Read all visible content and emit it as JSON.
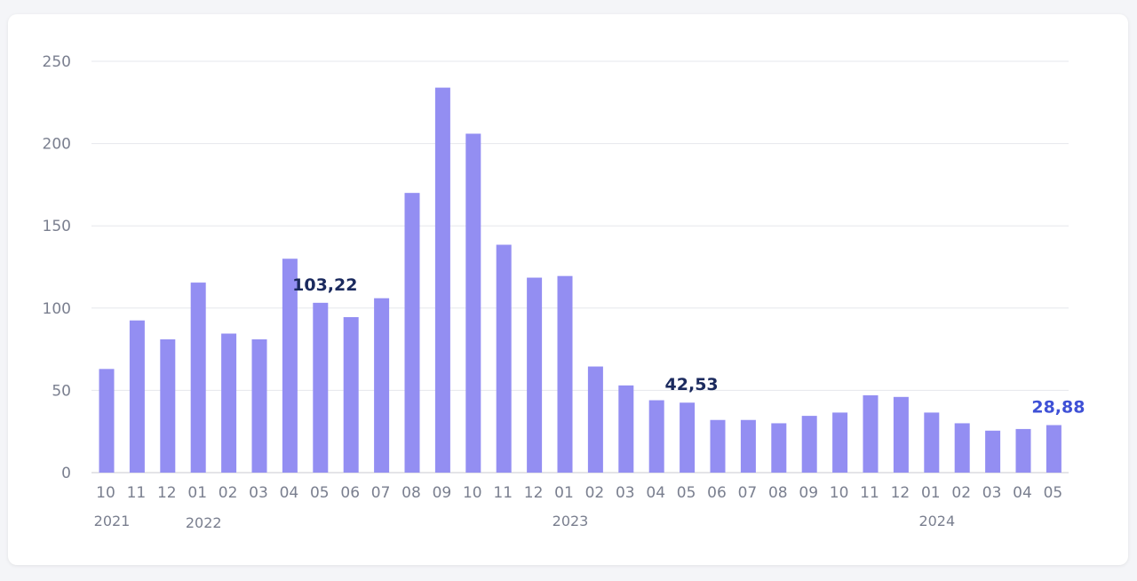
{
  "chart_data": {
    "type": "bar",
    "categories": [
      "10",
      "11",
      "12",
      "01",
      "02",
      "03",
      "04",
      "05",
      "06",
      "07",
      "08",
      "09",
      "10",
      "11",
      "12",
      "01",
      "02",
      "03",
      "04",
      "05",
      "06",
      "07",
      "08",
      "09",
      "10",
      "11",
      "12",
      "01",
      "02",
      "03",
      "04",
      "05"
    ],
    "values": [
      63,
      92.5,
      81,
      115.5,
      84.5,
      81,
      130,
      103.22,
      94.5,
      106,
      170,
      234,
      206,
      138.5,
      118.5,
      119.5,
      64.5,
      53,
      44,
      42.53,
      32,
      32,
      30,
      34.5,
      36.5,
      47,
      46,
      36.5,
      30,
      25.5,
      26.5,
      28.88
    ],
    "years": [
      {
        "label": "2021",
        "index": 0
      },
      {
        "label": "2022",
        "index": 3
      },
      {
        "label": "2023",
        "index": 15
      },
      {
        "label": "2024",
        "index": 27
      }
    ],
    "yticks": [
      "0",
      "50",
      "100",
      "150",
      "200",
      "250"
    ],
    "ylim": [
      0,
      250
    ],
    "grid": true,
    "data_labels": [
      {
        "index": 7,
        "text": "103,22",
        "color": "#1b2a5e"
      },
      {
        "index": 19,
        "text": "42,53",
        "color": "#1b2a5e"
      },
      {
        "index": 31,
        "text": "28,88",
        "color": "#3f51d6"
      }
    ],
    "colors": {
      "bar": "#938ef2",
      "grid": "#e6e7ec",
      "axis": "#c8cad2"
    }
  }
}
